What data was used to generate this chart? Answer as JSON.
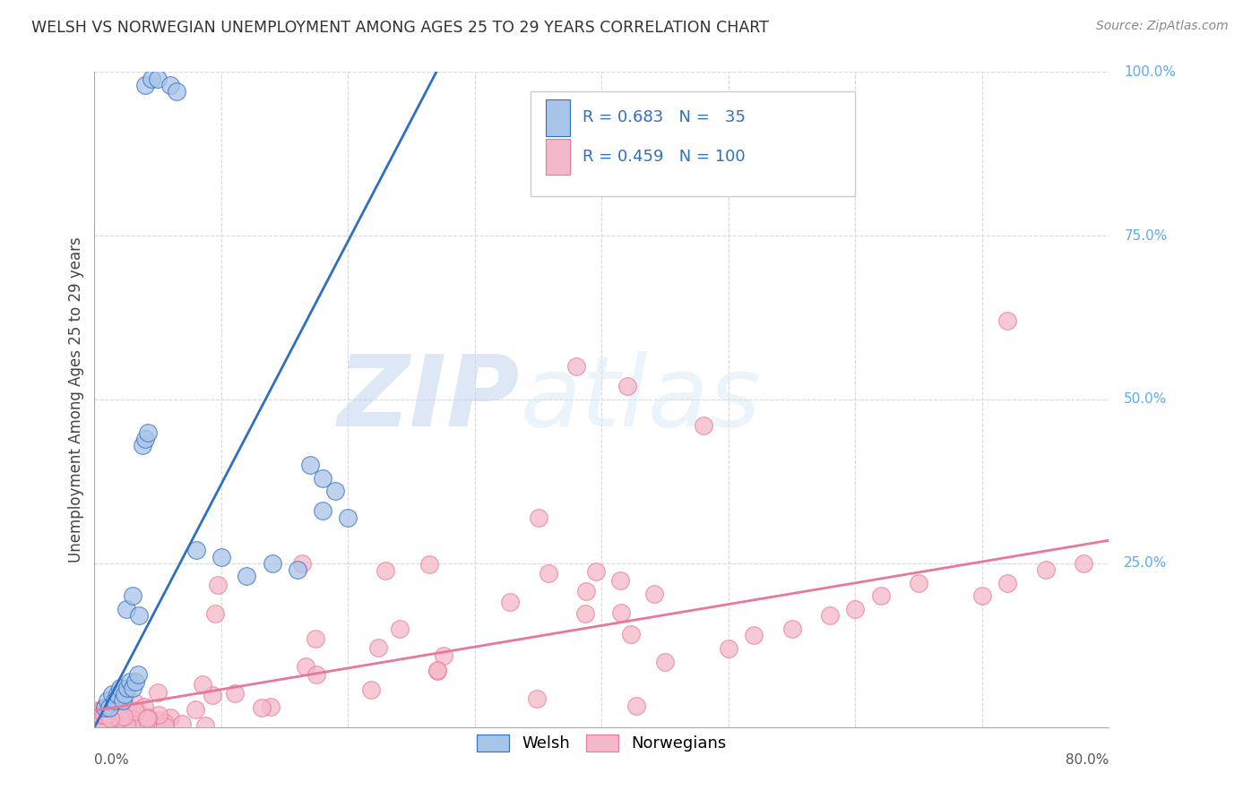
{
  "title": "WELSH VS NORWEGIAN UNEMPLOYMENT AMONG AGES 25 TO 29 YEARS CORRELATION CHART",
  "source": "Source: ZipAtlas.com",
  "ylabel": "Unemployment Among Ages 25 to 29 years",
  "welsh_color": "#a8c4e8",
  "norw_color": "#f5b8c8",
  "welsh_line_color": "#2e6fc4",
  "norw_line_color": "#e8789a",
  "xlim": [
    0.0,
    0.8
  ],
  "ylim": [
    0.0,
    1.0
  ],
  "watermark_color": "#c8d8f0",
  "background_color": "#ffffff",
  "grid_color": "#d8d8d8",
  "right_tick_color": "#5baaf5",
  "legend_text_color": "#2e6fc4",
  "legend_n_color": "#2e6fc4",
  "welsh_line_x": [
    0.0,
    0.275
  ],
  "welsh_line_y": [
    0.0,
    1.02
  ],
  "norw_line_x": [
    0.0,
    0.8
  ],
  "norw_line_y": [
    0.025,
    0.285
  ]
}
